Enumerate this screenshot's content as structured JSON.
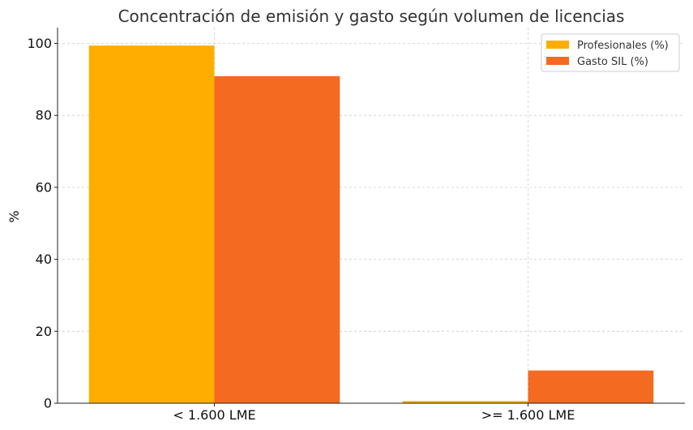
{
  "chart_data": {
    "type": "bar",
    "title": "Concentración de emisión y gasto según volumen de licencias",
    "xlabel": "",
    "ylabel": "%",
    "categories": [
      "< 1.600 LME",
      ">= 1.600 LME"
    ],
    "series": [
      {
        "name": "Profesionales (%)",
        "values": [
          99.4,
          0.6
        ],
        "color": "#FFAE00"
      },
      {
        "name": "Gasto SIL (%)",
        "values": [
          90.9,
          9.1
        ],
        "color": "#F46A21"
      }
    ],
    "ylim": [
      0,
      104.4
    ],
    "yticks": [
      0,
      20,
      40,
      60,
      80,
      100
    ],
    "grid": true,
    "legend_position": "top-right"
  }
}
